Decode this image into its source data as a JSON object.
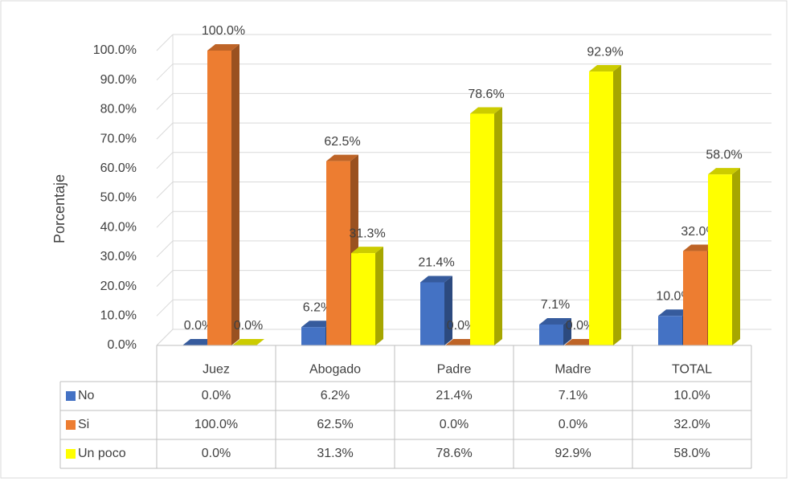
{
  "chart_data": {
    "type": "bar3d",
    "y_label": "Porcentaje",
    "categories": [
      "Juez",
      "Abogado",
      "Padre",
      "Madre",
      "TOTAL"
    ],
    "series": [
      {
        "name": "No",
        "color": "#4472c4",
        "values": [
          0,
          6.2,
          21.4,
          7.1,
          10
        ],
        "value_labels": [
          "0.0%",
          "6.2%",
          "21.4%",
          "7.1%",
          "10.0%"
        ]
      },
      {
        "name": "Si",
        "color": "#ed7d31",
        "values": [
          100,
          62.5,
          0,
          0,
          32
        ],
        "value_labels": [
          "100.0%",
          "62.5%",
          "0.0%",
          "0.0%",
          "32.0%"
        ]
      },
      {
        "name": "Un poco",
        "color": "#ffff00",
        "values": [
          0,
          31.3,
          78.6,
          92.9,
          58
        ],
        "value_labels": [
          "0.0%",
          "31.3%",
          "78.6%",
          "92.9%",
          "58.0%"
        ]
      }
    ],
    "ylim": [
      0,
      100
    ],
    "yticks": [
      {
        "value": 0,
        "label": "0.0%"
      },
      {
        "value": 10,
        "label": "10.0%"
      },
      {
        "value": 20,
        "label": "20.0%"
      },
      {
        "value": 30,
        "label": "30.0%"
      },
      {
        "value": 40,
        "label": "40.0%"
      },
      {
        "value": 50,
        "label": "50.0%"
      },
      {
        "value": 60,
        "label": "60.0%"
      },
      {
        "value": 70,
        "label": "70.0%"
      },
      {
        "value": 80,
        "label": "80.0%"
      },
      {
        "value": 90,
        "label": "90.0%"
      },
      {
        "value": 100,
        "label": "100.0%"
      }
    ],
    "grid": true
  }
}
